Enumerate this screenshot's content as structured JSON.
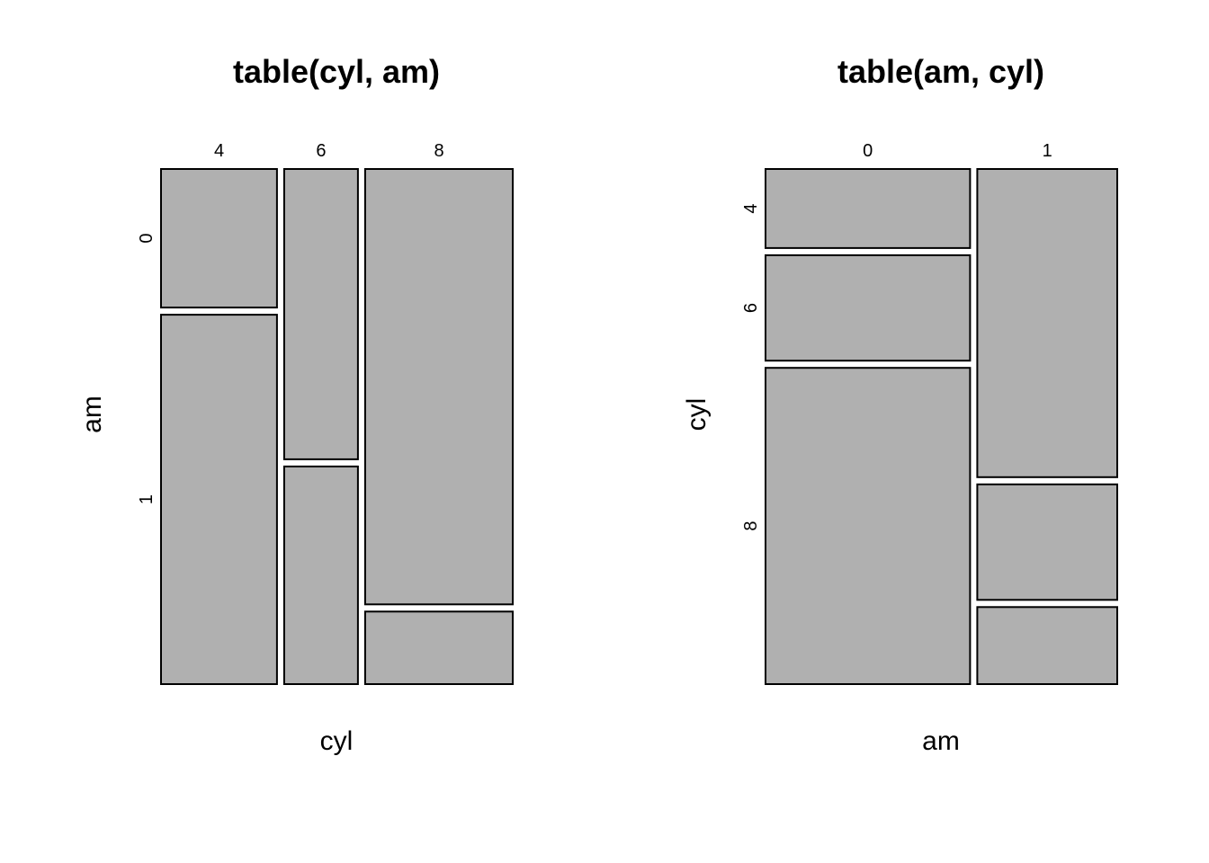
{
  "chart_data": [
    {
      "type": "mosaic",
      "title": "table(cyl, am)",
      "xlabel": "cyl",
      "ylabel": "am",
      "x_categories": [
        "4",
        "6",
        "8"
      ],
      "y_categories": [
        "0",
        "1"
      ],
      "counts": [
        [
          3,
          8
        ],
        [
          4,
          3
        ],
        [
          12,
          2
        ]
      ],
      "grid": false,
      "legend": "none"
    },
    {
      "type": "mosaic",
      "title": "table(am, cyl)",
      "xlabel": "am",
      "ylabel": "cyl",
      "x_categories": [
        "0",
        "1"
      ],
      "y_categories": [
        "4",
        "6",
        "8"
      ],
      "counts": [
        [
          3,
          4,
          12
        ],
        [
          8,
          3,
          2
        ]
      ],
      "grid": false,
      "legend": "none"
    }
  ],
  "style": {
    "tile_fill": "#b0b0b0",
    "tile_stroke": "#000000",
    "text_color": "#000000",
    "background": "#ffffff"
  }
}
